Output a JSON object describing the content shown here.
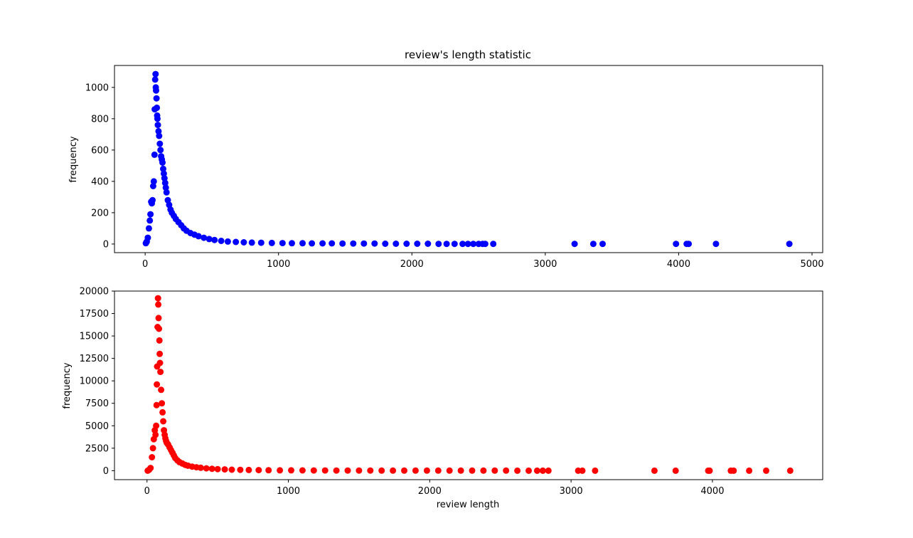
{
  "chart_data": [
    {
      "type": "scatter",
      "title": "review's length statistic",
      "xlabel": "",
      "ylabel": "frequency",
      "color": "#0000ff",
      "xlim": [
        -230,
        5080
      ],
      "ylim": [
        -55,
        1140
      ],
      "xticks": [
        0,
        1000,
        2000,
        3000,
        4000,
        5000
      ],
      "yticks": [
        0,
        200,
        400,
        600,
        800,
        1000
      ],
      "grid": false,
      "legend": "none",
      "series": [
        {
          "x": [
            5,
            12,
            20,
            28,
            35,
            40,
            45,
            50,
            55,
            60,
            65,
            70,
            72,
            75,
            78,
            80,
            82,
            85,
            88,
            90,
            92,
            95,
            100,
            105,
            110,
            115,
            120,
            125,
            130,
            135,
            140,
            145,
            150,
            155,
            160,
            170,
            180,
            190,
            200,
            215,
            230,
            250,
            270,
            290,
            310,
            340,
            370,
            400,
            440,
            480,
            520,
            570,
            620,
            680,
            740,
            800,
            870,
            950,
            1030,
            1100,
            1180,
            1250,
            1330,
            1400,
            1480,
            1560,
            1640,
            1720,
            1800,
            1880,
            1960,
            2040,
            2120,
            2200,
            2260,
            2320,
            2380,
            2420,
            2460,
            2500,
            2530,
            2550,
            2610,
            3220,
            3360,
            3430,
            3980,
            4060,
            4075,
            4280,
            4830
          ],
          "y": [
            5,
            15,
            40,
            100,
            150,
            190,
            270,
            260,
            280,
            370,
            400,
            570,
            860,
            1050,
            1085,
            1000,
            980,
            930,
            870,
            820,
            800,
            760,
            720,
            690,
            640,
            600,
            560,
            540,
            520,
            480,
            450,
            420,
            390,
            360,
            330,
            280,
            250,
            220,
            200,
            180,
            160,
            140,
            120,
            100,
            85,
            70,
            60,
            50,
            40,
            32,
            26,
            20,
            16,
            13,
            11,
            9,
            8,
            7,
            6,
            5,
            5,
            4,
            4,
            4,
            3,
            3,
            3,
            3,
            2,
            2,
            2,
            2,
            2,
            1,
            1,
            1,
            1,
            1,
            1,
            1,
            1,
            1,
            1,
            1,
            1,
            1,
            1,
            1,
            1,
            1,
            1
          ]
        }
      ]
    },
    {
      "type": "scatter",
      "title": "",
      "xlabel": "review length",
      "ylabel": "frequency",
      "color": "#ff0000",
      "xlim": [
        -230,
        4780
      ],
      "ylim": [
        -1000,
        20000
      ],
      "xticks": [
        0,
        1000,
        2000,
        3000,
        4000
      ],
      "yticks": [
        0,
        2500,
        5000,
        7500,
        10000,
        12500,
        15000,
        17500,
        20000
      ],
      "grid": false,
      "legend": "none",
      "series": [
        {
          "x": [
            5,
            15,
            25,
            35,
            42,
            48,
            55,
            60,
            65,
            68,
            70,
            72,
            75,
            78,
            80,
            82,
            85,
            88,
            90,
            92,
            95,
            100,
            105,
            110,
            115,
            120,
            125,
            130,
            135,
            140,
            145,
            150,
            160,
            170,
            180,
            190,
            200,
            215,
            230,
            250,
            270,
            290,
            320,
            350,
            380,
            420,
            460,
            500,
            550,
            600,
            660,
            720,
            790,
            860,
            940,
            1020,
            1100,
            1180,
            1260,
            1340,
            1420,
            1500,
            1580,
            1660,
            1740,
            1820,
            1900,
            1980,
            2060,
            2140,
            2220,
            2300,
            2380,
            2460,
            2540,
            2620,
            2700,
            2760,
            2800,
            2840,
            3050,
            3080,
            3170,
            3590,
            3740,
            3970,
            3980,
            4130,
            4150,
            4260,
            4380,
            4550
          ],
          "y": [
            0,
            100,
            300,
            1500,
            2500,
            3500,
            4500,
            4000,
            5000,
            7300,
            9600,
            11600,
            16000,
            19200,
            18500,
            17000,
            15800,
            14500,
            13000,
            12000,
            11000,
            9000,
            7500,
            6500,
            5500,
            4500,
            4000,
            3600,
            3300,
            3100,
            3000,
            2900,
            2600,
            2300,
            2000,
            1700,
            1400,
            1150,
            950,
            800,
            650,
            550,
            450,
            380,
            320,
            260,
            210,
            170,
            140,
            110,
            90,
            75,
            60,
            50,
            42,
            35,
            30,
            25,
            21,
            18,
            15,
            13,
            11,
            10,
            9,
            8,
            7,
            6,
            5,
            5,
            4,
            4,
            3,
            3,
            3,
            2,
            2,
            2,
            2,
            2,
            1,
            1,
            1,
            1,
            1,
            1,
            1,
            1,
            1,
            1,
            1,
            1
          ]
        }
      ]
    }
  ]
}
